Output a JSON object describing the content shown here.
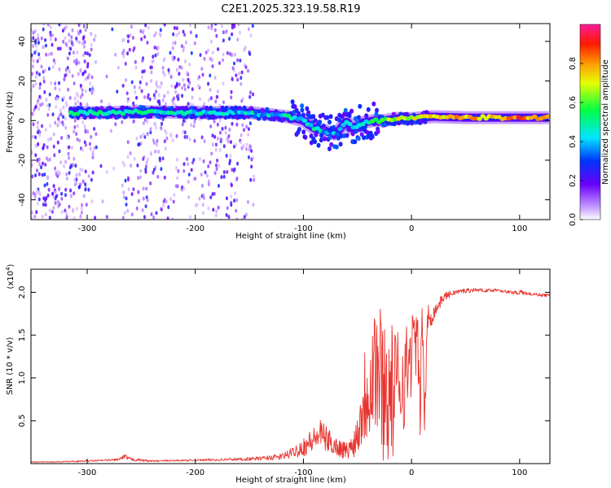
{
  "title": "C2E1.2025.323.19.58.R19",
  "colors": {
    "snr_line": "#e8332e",
    "plot_bg": "#ffffff",
    "axis": "#000000",
    "scatter_hue": "#7a22ee"
  },
  "chart_data": [
    {
      "type": "heatmap",
      "panel": "top",
      "title": "C2E1.2025.323.19.58.R19",
      "xlabel": "Height of straight line (km)",
      "ylabel": "Frequency (Hz)",
      "xlim": [
        -352,
        128
      ],
      "ylim": [
        -50,
        49
      ],
      "xticks": [
        -300,
        -200,
        -100,
        0,
        100
      ],
      "xtick_labels": [
        "-300",
        "-200",
        "-100",
        "0",
        "100"
      ],
      "yticks": [
        -40,
        -20,
        0,
        20,
        40
      ],
      "ytick_labels": [
        "-40",
        "-20",
        "0",
        "20",
        "40"
      ],
      "colorbar": {
        "label": "Normalized spectral amplitude",
        "range": [
          0,
          1
        ],
        "ticks": [
          0.0,
          0.2,
          0.4,
          0.6,
          0.8
        ],
        "tick_labels": [
          "0.0",
          "0.2",
          "0.4",
          "0.6",
          "0.8"
        ],
        "colormap": "rainbow (white-violet-blue-cyan-green-yellow-red-magenta)"
      },
      "ridge": {
        "description": "Spectral ridge of carrier frequency versus height",
        "x": [
          -315,
          -280,
          -250,
          -200,
          -150,
          -130,
          -115,
          -100,
          -90,
          -80,
          -70,
          -60,
          -55,
          -45,
          -35,
          -25,
          -15,
          0,
          20,
          50,
          80,
          100,
          128
        ],
        "freq": [
          4,
          4,
          4.5,
          4,
          4,
          3,
          2,
          0,
          -4,
          -5,
          -7,
          0,
          -4,
          -1,
          0,
          0,
          1,
          1,
          2,
          1.5,
          1.5,
          1.5,
          1.5
        ],
        "amplitude": [
          0.45,
          0.5,
          0.5,
          0.45,
          0.4,
          0.4,
          0.45,
          0.45,
          0.45,
          0.4,
          0.35,
          0.4,
          0.4,
          0.45,
          0.55,
          0.6,
          0.65,
          0.7,
          0.75,
          0.75,
          0.8,
          0.85,
          0.7
        ]
      },
      "noise_region": {
        "x_range": [
          -352,
          -145
        ],
        "freq_range": [
          -50,
          49
        ],
        "amplitude_range": [
          0.0,
          0.25
        ]
      }
    },
    {
      "type": "line",
      "panel": "bottom",
      "xlabel": "Height of straight line (km)",
      "ylabel": "SNR (10 * v/v)",
      "scale_label_prefix": "(x10",
      "scale_label_exp": "4",
      "scale_label_suffix": ")",
      "xlim": [
        -352,
        128
      ],
      "ylim": [
        0,
        2.27
      ],
      "xticks": [
        -300,
        -200,
        -100,
        0,
        100
      ],
      "xtick_labels": [
        "-300",
        "-200",
        "-100",
        "0",
        "100"
      ],
      "yticks": [
        0.5,
        1.0,
        1.5,
        2.0
      ],
      "ytick_labels": [
        "0.5",
        "1.0",
        "1.5",
        "2.0"
      ],
      "series": [
        {
          "name": "SNR",
          "color": "#e8332e",
          "x": [
            -352,
            -330,
            -300,
            -280,
            -270,
            -265,
            -260,
            -240,
            -200,
            -160,
            -140,
            -120,
            -110,
            -100,
            -90,
            -85,
            -80,
            -70,
            -60,
            -55,
            -50,
            -45,
            -40,
            -35,
            -30,
            -25,
            -20,
            -15,
            -10,
            -5,
            0,
            5,
            8,
            10,
            12,
            15,
            20,
            25,
            30,
            40,
            50,
            60,
            70,
            80,
            90,
            100,
            110,
            120,
            128
          ],
          "y": [
            0.02,
            0.02,
            0.03,
            0.04,
            0.05,
            0.08,
            0.05,
            0.03,
            0.04,
            0.05,
            0.06,
            0.08,
            0.13,
            0.2,
            0.28,
            0.35,
            0.3,
            0.2,
            0.15,
            0.2,
            0.35,
            0.7,
            1.0,
            1.2,
            1.05,
            0.9,
            0.8,
            0.85,
            1.0,
            1.05,
            1.3,
            1.5,
            0.6,
            1.8,
            0.5,
            1.7,
            1.75,
            1.85,
            1.95,
            2.0,
            2.02,
            2.03,
            2.02,
            2.03,
            2.0,
            2.0,
            1.98,
            1.97,
            1.96
          ],
          "noise_amplitude": [
            0.005,
            0.005,
            0.01,
            0.01,
            0.02,
            0.03,
            0.02,
            0.01,
            0.01,
            0.02,
            0.02,
            0.04,
            0.06,
            0.12,
            0.15,
            0.18,
            0.15,
            0.12,
            0.1,
            0.14,
            0.25,
            0.5,
            0.8,
            0.95,
            0.9,
            0.9,
            0.85,
            0.75,
            0.7,
            0.6,
            0.5,
            0.45,
            0.3,
            0.4,
            0.25,
            0.2,
            0.1,
            0.07,
            0.05,
            0.03,
            0.03,
            0.02,
            0.02,
            0.02,
            0.02,
            0.03,
            0.02,
            0.02,
            0.02
          ]
        }
      ]
    }
  ]
}
